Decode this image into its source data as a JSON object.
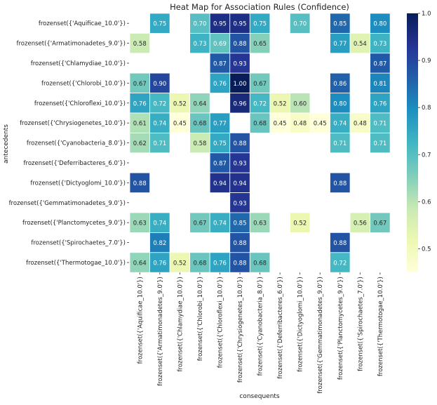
{
  "chart_data": {
    "type": "heatmap",
    "title": "Heat Map for Association Rules (Confidence)",
    "xlabel": "consequents",
    "ylabel": "antecedents",
    "colormap": "YlGnBu",
    "colorbar": {
      "range": [
        0.45,
        1.0
      ],
      "ticks": [
        "0.5",
        "0.6",
        "0.7",
        "0.8",
        "0.9",
        "1.0"
      ]
    },
    "x_categories": [
      "frozenset({'Aquificae_10.0'})",
      "frozenset({'Armatimonadetes_9.0'})",
      "frozenset({'Chlamydiae_10.0'})",
      "frozenset({'Chlorobi_10.0'})",
      "frozenset({'Chloroflexi_10.0'})",
      "frozenset({'Chrysiogenetes_10.0'})",
      "frozenset({'Cyanobacteria_8.0'})",
      "frozenset({'Deferribacteres_6.0'})",
      "frozenset({'Dictyoglomi_10.0'})",
      "frozenset({'Gemmatimonadetes_9.0'})",
      "frozenset({'Planctomycetes_9.0'})",
      "frozenset({'Spirochaetes_7.0'})",
      "frozenset({'Thermotogae_10.0'})"
    ],
    "y_categories": [
      "frozenset({'Aquificae_10.0'})",
      "frozenset({'Armatimonadetes_9.0'})",
      "frozenset({'Chlamydiae_10.0'})",
      "frozenset({'Chlorobi_10.0'})",
      "frozenset({'Chloroflexi_10.0'})",
      "frozenset({'Chrysiogenetes_10.0'})",
      "frozenset({'Cyanobacteria_8.0'})",
      "frozenset({'Deferribacteres_6.0'})",
      "frozenset({'Dictyoglomi_10.0'})",
      "frozenset({'Gemmatimonadetes_9.0'})",
      "frozenset({'Planctomycetes_9.0'})",
      "frozenset({'Spirochaetes_7.0'})",
      "frozenset({'Thermotogae_10.0'})"
    ],
    "values": [
      [
        null,
        0.75,
        null,
        0.7,
        0.95,
        0.95,
        0.75,
        null,
        0.7,
        null,
        0.85,
        null,
        0.8
      ],
      [
        0.58,
        null,
        null,
        0.73,
        0.69,
        0.88,
        0.65,
        null,
        null,
        null,
        0.77,
        0.54,
        0.73
      ],
      [
        null,
        null,
        null,
        null,
        0.87,
        0.93,
        null,
        null,
        null,
        null,
        null,
        null,
        0.87
      ],
      [
        0.67,
        0.9,
        null,
        null,
        0.76,
        1.0,
        0.67,
        null,
        null,
        null,
        0.86,
        null,
        0.81
      ],
      [
        0.76,
        0.72,
        0.52,
        0.64,
        null,
        0.96,
        0.72,
        0.52,
        0.6,
        null,
        0.8,
        null,
        0.76
      ],
      [
        0.61,
        0.74,
        0.45,
        0.68,
        0.77,
        null,
        0.68,
        0.45,
        0.48,
        0.45,
        0.74,
        0.48,
        0.71
      ],
      [
        0.62,
        0.71,
        null,
        0.58,
        0.75,
        0.88,
        null,
        null,
        null,
        null,
        0.71,
        null,
        0.71
      ],
      [
        null,
        null,
        null,
        null,
        0.87,
        0.93,
        null,
        null,
        null,
        null,
        null,
        null,
        null
      ],
      [
        0.88,
        null,
        null,
        null,
        0.94,
        0.94,
        null,
        null,
        null,
        null,
        0.88,
        null,
        null
      ],
      [
        null,
        null,
        null,
        null,
        null,
        0.93,
        null,
        null,
        null,
        null,
        null,
        null,
        null
      ],
      [
        0.63,
        0.74,
        null,
        0.67,
        0.74,
        0.85,
        0.63,
        null,
        0.52,
        null,
        null,
        0.56,
        0.67
      ],
      [
        null,
        0.82,
        null,
        null,
        null,
        0.88,
        null,
        null,
        null,
        null,
        0.88,
        null,
        null
      ],
      [
        0.64,
        0.76,
        0.52,
        0.68,
        0.76,
        0.88,
        0.68,
        null,
        null,
        null,
        0.72,
        null,
        null
      ]
    ]
  }
}
